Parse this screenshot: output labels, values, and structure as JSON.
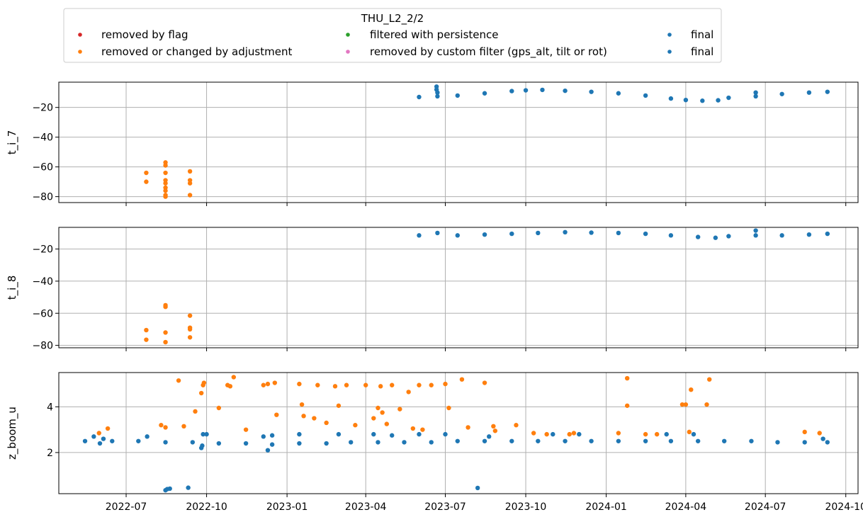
{
  "chart_data": {
    "type": "scatter",
    "legend": {
      "title": "THU_L2_2/2",
      "placement": "top",
      "entries": [
        {
          "label": "removed by flag",
          "color": "#d62728"
        },
        {
          "label": "filtered with persistence",
          "color": "#2ca02c"
        },
        {
          "label": "final",
          "color": "#1f77b4"
        },
        {
          "label": "removed or changed by adjustment",
          "color": "#ff7f0e"
        },
        {
          "label": "removed by custom filter (gps_alt, tilt or rot)",
          "color": "#e377c2"
        },
        {
          "label": "final",
          "color": "#1f77b4"
        }
      ]
    },
    "x_axis": {
      "type": "date",
      "range": [
        "2022-04-15",
        "2024-10-15"
      ],
      "ticks": [
        "2022-07-01",
        "2022-10-01",
        "2023-01-01",
        "2023-04-01",
        "2023-07-01",
        "2023-10-01",
        "2024-01-01",
        "2024-04-01",
        "2024-07-01",
        "2024-10-01"
      ],
      "tick_labels": [
        "2022-07",
        "2022-10",
        "2023-01",
        "2023-04",
        "2023-07",
        "2023-10",
        "2024-01",
        "2024-04",
        "2024-07",
        "2024-10"
      ],
      "grid": true
    },
    "panels": [
      {
        "ylabel": "t_i_7",
        "ylim": [
          -84,
          -3
        ],
        "yticks": [
          -80,
          -60,
          -40,
          -20
        ],
        "ytick_labels": [
          "−80",
          "−60",
          "−40",
          "−20"
        ],
        "grid": true,
        "series": [
          {
            "name": "final",
            "color": "#1f77b4",
            "x": [
              "2023-06-01",
              "2023-06-22",
              "2023-07-15",
              "2023-08-15",
              "2023-09-15",
              "2023-10-01",
              "2023-10-20",
              "2023-11-15",
              "2023-12-15",
              "2024-01-15",
              "2024-02-15",
              "2024-03-15",
              "2024-04-01",
              "2024-04-20",
              "2024-05-08",
              "2024-05-20",
              "2024-06-20",
              "2024-07-20",
              "2024-08-20",
              "2024-09-10"
            ],
            "y": [
              -13,
              -12.5,
              -12,
              -10.5,
              -9,
              -8.5,
              -8.2,
              -8.8,
              -9.5,
              -10.5,
              -12,
              -14,
              -15,
              -15.5,
              -15.2,
              -13.5,
              -12.5,
              -11,
              -10,
              -9.5
            ]
          },
          {
            "name": "final",
            "color": "#1f77b4",
            "x": [
              "2023-06-21",
              "2023-06-21",
              "2023-06-22",
              "2024-06-20"
            ],
            "y": [
              -6,
              -8,
              -10,
              -10
            ]
          },
          {
            "name": "removed or changed by adjustment",
            "color": "#ff7f0e",
            "x": [
              "2022-07-24",
              "2022-07-24",
              "2022-08-15",
              "2022-08-15",
              "2022-08-15",
              "2022-08-15",
              "2022-08-15",
              "2022-08-15",
              "2022-08-15",
              "2022-08-15",
              "2022-08-15",
              "2022-09-12",
              "2022-09-12",
              "2022-09-12",
              "2022-09-12"
            ],
            "y": [
              -64,
              -70,
              -57,
              -59,
              -64,
              -69,
              -71,
              -74,
              -76,
              -79,
              -80,
              -63,
              -69,
              -71,
              -79
            ]
          }
        ]
      },
      {
        "ylabel": "t_i_8",
        "ylim": [
          -81.5,
          -6.5
        ],
        "yticks": [
          -80,
          -60,
          -40,
          -20
        ],
        "ytick_labels": [
          "−80",
          "−60",
          "−40",
          "−20"
        ],
        "grid": true,
        "series": [
          {
            "name": "final",
            "color": "#1f77b4",
            "x": [
              "2023-06-01",
              "2023-07-15",
              "2023-08-15",
              "2023-09-15",
              "2023-10-15",
              "2023-11-15",
              "2023-12-15",
              "2024-01-15",
              "2024-02-15",
              "2024-03-15",
              "2024-04-15",
              "2024-05-05",
              "2024-05-20",
              "2024-06-20",
              "2024-07-20",
              "2024-08-20",
              "2024-09-10"
            ],
            "y": [
              -11.5,
              -11.5,
              -11,
              -10.5,
              -10,
              -9.5,
              -9.8,
              -10,
              -10.5,
              -11.5,
              -12.5,
              -13,
              -12,
              -11.5,
              -11.5,
              -11,
              -10.5
            ]
          },
          {
            "name": "final",
            "color": "#1f77b4",
            "x": [
              "2023-06-22",
              "2024-06-20"
            ],
            "y": [
              -10,
              -8.5
            ]
          },
          {
            "name": "removed or changed by adjustment",
            "color": "#ff7f0e",
            "x": [
              "2022-07-24",
              "2022-07-24",
              "2022-08-15",
              "2022-08-15",
              "2022-08-15",
              "2022-08-15",
              "2022-09-12",
              "2022-09-12",
              "2022-09-12",
              "2022-09-12"
            ],
            "y": [
              -70.5,
              -76.5,
              -55,
              -56,
              -72,
              -78,
              -61.5,
              -69,
              -70,
              -75
            ]
          }
        ]
      },
      {
        "ylabel": "z_boom_u",
        "ylim": [
          0.2,
          5.5
        ],
        "yticks": [
          2,
          4
        ],
        "ytick_labels": [
          "2",
          "4"
        ],
        "grid": true,
        "series": [
          {
            "name": "final",
            "color": "#1f77b4",
            "x": [
              "2022-05-15",
              "2022-06-15",
              "2022-07-15",
              "2022-08-15",
              "2022-09-15",
              "2022-10-15",
              "2022-11-15",
              "2022-12-15",
              "2023-01-15",
              "2023-02-15",
              "2023-03-15",
              "2023-04-15",
              "2023-05-15",
              "2023-06-15",
              "2023-07-15",
              "2023-08-15",
              "2023-09-15",
              "2023-10-15",
              "2023-11-15",
              "2023-12-15",
              "2024-01-15",
              "2024-02-15",
              "2024-03-15",
              "2024-04-15",
              "2024-05-15",
              "2024-06-15",
              "2024-07-15",
              "2024-08-15",
              "2024-09-10"
            ],
            "y": [
              2.5,
              2.5,
              2.5,
              2.45,
              2.45,
              2.4,
              2.4,
              2.35,
              2.4,
              2.4,
              2.45,
              2.45,
              2.45,
              2.45,
              2.5,
              2.5,
              2.5,
              2.5,
              2.5,
              2.5,
              2.5,
              2.5,
              2.5,
              2.5,
              2.5,
              2.5,
              2.45,
              2.45,
              2.45
            ]
          },
          {
            "name": "final",
            "color": "#1f77b4",
            "x": [
              "2022-05-25",
              "2022-06-01",
              "2022-06-05",
              "2022-07-25",
              "2022-08-15",
              "2022-08-17",
              "2022-08-20",
              "2022-09-10",
              "2022-09-25",
              "2022-09-26",
              "2022-09-27",
              "2022-10-01",
              "2022-12-05",
              "2022-12-10",
              "2022-12-15",
              "2023-01-15",
              "2023-03-01",
              "2023-04-10",
              "2023-05-01",
              "2023-06-01",
              "2023-07-01",
              "2023-08-07",
              "2023-08-20",
              "2023-11-01",
              "2023-12-01",
              "2024-03-10",
              "2024-04-10",
              "2024-09-05"
            ],
            "y": [
              2.7,
              2.4,
              2.6,
              2.7,
              0.35,
              0.4,
              0.42,
              0.46,
              2.2,
              2.3,
              2.8,
              2.8,
              2.7,
              2.1,
              2.75,
              2.8,
              2.8,
              2.8,
              2.75,
              2.8,
              2.8,
              0.45,
              2.7,
              2.8,
              2.8,
              2.8,
              2.8,
              2.6
            ]
          },
          {
            "name": "removed or changed by adjustment",
            "color": "#ff7f0e",
            "x": [
              "2022-05-31",
              "2022-06-10",
              "2022-08-10",
              "2022-08-15",
              "2022-08-30",
              "2022-09-05",
              "2022-09-18",
              "2022-09-25",
              "2022-09-27",
              "2022-09-28",
              "2022-10-15",
              "2022-10-25",
              "2022-10-28",
              "2022-11-01",
              "2022-11-15",
              "2022-12-05",
              "2022-12-10",
              "2022-12-18",
              "2022-12-20",
              "2023-01-15",
              "2023-01-18",
              "2023-01-20",
              "2023-02-01",
              "2023-02-05",
              "2023-02-15",
              "2023-02-25",
              "2023-03-01",
              "2023-03-10",
              "2023-03-20",
              "2023-04-01",
              "2023-04-10",
              "2023-04-15",
              "2023-04-18",
              "2023-04-20",
              "2023-04-25",
              "2023-05-01",
              "2023-05-10",
              "2023-05-20",
              "2023-05-25",
              "2023-06-01",
              "2023-06-05",
              "2023-06-15",
              "2023-07-01",
              "2023-07-05",
              "2023-07-20",
              "2023-07-27",
              "2023-08-15",
              "2023-08-25",
              "2023-08-27",
              "2023-09-20",
              "2023-10-10",
              "2023-10-25",
              "2023-11-20",
              "2023-11-25",
              "2024-01-15",
              "2024-01-25",
              "2024-01-25",
              "2024-02-15",
              "2024-02-28",
              "2024-03-28",
              "2024-04-01",
              "2024-04-05",
              "2024-04-07",
              "2024-04-25",
              "2024-04-28",
              "2024-08-15",
              "2024-09-01"
            ],
            "y": [
              2.85,
              3.05,
              3.2,
              3.1,
              5.15,
              3.15,
              3.8,
              4.6,
              4.95,
              5.05,
              3.95,
              4.95,
              4.9,
              5.3,
              3.0,
              4.95,
              5.0,
              5.05,
              3.65,
              5.0,
              4.1,
              3.6,
              3.5,
              4.95,
              3.3,
              4.9,
              4.05,
              4.95,
              3.2,
              4.95,
              3.5,
              3.95,
              4.9,
              3.75,
              3.25,
              4.95,
              3.9,
              4.65,
              3.05,
              4.95,
              3.0,
              4.95,
              5.0,
              3.95,
              5.2,
              3.1,
              5.05,
              3.15,
              2.95,
              3.2,
              2.85,
              2.8,
              2.8,
              2.85,
              2.85,
              5.25,
              4.05,
              2.8,
              2.8,
              4.1,
              4.1,
              2.9,
              4.75,
              4.1,
              5.2,
              2.9,
              2.85
            ]
          }
        ]
      }
    ]
  }
}
